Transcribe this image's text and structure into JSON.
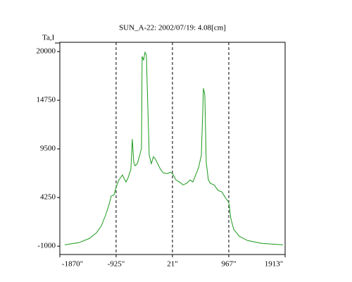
{
  "chart_data": {
    "type": "line",
    "title": "SUN_A-22: 2002/07/19: 4.08[cm]",
    "ylabel": "Ta,I",
    "xlim": [
      -1870,
      1913
    ],
    "ylim": [
      -1900,
      21000
    ],
    "xticks": [
      {
        "value": -1870,
        "label": "-1870\""
      },
      {
        "value": -925,
        "label": "-925\""
      },
      {
        "value": 21,
        "label": "21\""
      },
      {
        "value": 967,
        "label": "967\""
      },
      {
        "value": 1913,
        "label": "1913\""
      }
    ],
    "yticks": [
      20000,
      14750,
      9500,
      4250,
      -1000
    ],
    "xgrid": "dashed",
    "series": [
      {
        "color": "#1a9a1a",
        "x": [
          -1788,
          -1552,
          -1374,
          -1256,
          -1173,
          -1102,
          -1043,
          -1008,
          -960,
          -925,
          -878,
          -819,
          -759,
          -724,
          -677,
          -653,
          -629,
          -606,
          -570,
          -535,
          -499,
          -488,
          -464,
          -440,
          -417,
          -393,
          -369,
          -334,
          -298,
          -263,
          -227,
          -180,
          -133,
          -62,
          -15,
          21,
          80,
          139,
          198,
          257,
          317,
          364,
          411,
          458,
          506,
          529,
          541,
          565,
          588,
          624,
          659,
          719,
          789,
          849,
          908,
          967,
          1002,
          1050,
          1144,
          1286,
          1523,
          1877
        ],
        "values": [
          -850,
          -620,
          -170,
          440,
          1200,
          2350,
          3490,
          4400,
          4550,
          5390,
          6150,
          6680,
          5920,
          6380,
          7290,
          10560,
          8050,
          7670,
          7900,
          8660,
          9570,
          19470,
          19090,
          19920,
          19620,
          14140,
          8810,
          7900,
          8660,
          8360,
          7900,
          7290,
          6910,
          6830,
          6990,
          6830,
          6150,
          5920,
          5620,
          5770,
          6150,
          5920,
          6680,
          7440,
          8810,
          13380,
          16040,
          15280,
          8050,
          6150,
          5770,
          5620,
          5010,
          4860,
          4250,
          3720,
          1960,
          820,
          60,
          -400,
          -700,
          -850
        ]
      }
    ]
  }
}
